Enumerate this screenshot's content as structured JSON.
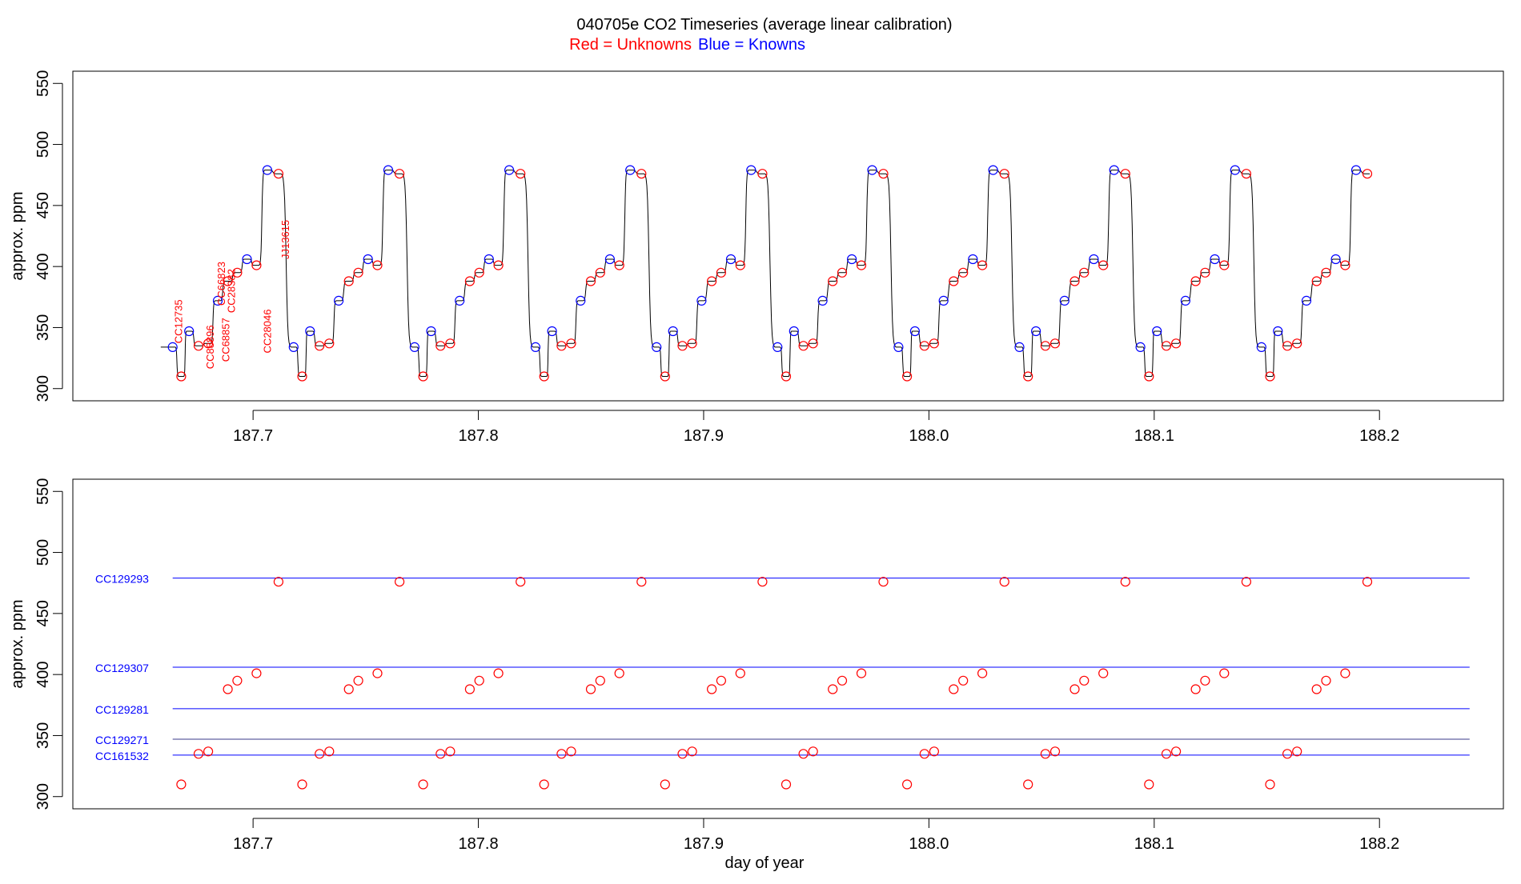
{
  "header": {
    "title": "040705e   CO2 Timeseries (average linear calibration)",
    "legend_red": "Red = Unknowns",
    "legend_blue": "Blue = Knowns"
  },
  "colors": {
    "unknown": "#ff0000",
    "known": "#0000ff",
    "trace": "#000000"
  },
  "chart_data": [
    {
      "type": "line",
      "ylabel": "approx. ppm",
      "xlim": [
        187.62,
        188.255
      ],
      "ylim": [
        290,
        560
      ],
      "xticks": [
        "187.7",
        "187.8",
        "187.9",
        "188.0",
        "188.1",
        "188.2"
      ],
      "yticks": [
        "300",
        "350",
        "400",
        "450",
        "500",
        "550"
      ],
      "grid": false,
      "cycle_start": 187.6643,
      "cycle_period": 0.0537,
      "cycle_count": 10,
      "trace_start": 187.659,
      "trace_end": 188.236,
      "cycle_points": [
        {
          "t": 0.0,
          "ppm": 334,
          "kind": "known"
        },
        {
          "t": 0.0038,
          "ppm": 310,
          "kind": "unknown"
        },
        {
          "t": 0.0073,
          "ppm": 347,
          "kind": "known"
        },
        {
          "t": 0.0115,
          "ppm": 335,
          "kind": "unknown"
        },
        {
          "t": 0.0158,
          "ppm": 337,
          "kind": "unknown"
        },
        {
          "t": 0.02,
          "ppm": 372,
          "kind": "known"
        },
        {
          "t": 0.0245,
          "ppm": 388,
          "kind": "unknown"
        },
        {
          "t": 0.0287,
          "ppm": 395,
          "kind": "unknown"
        },
        {
          "t": 0.033,
          "ppm": 406,
          "kind": "known"
        },
        {
          "t": 0.0372,
          "ppm": 401,
          "kind": "unknown"
        },
        {
          "t": 0.042,
          "ppm": 479,
          "kind": "known"
        },
        {
          "t": 0.047,
          "ppm": 476,
          "kind": "unknown"
        }
      ],
      "annotations": [
        {
          "label": "CC12735",
          "x": 187.6685,
          "y": 337
        },
        {
          "label": "CC88896",
          "x": 187.6825,
          "y": 316
        },
        {
          "label": "CC66823",
          "x": 187.6875,
          "y": 368
        },
        {
          "label": "CC68857",
          "x": 187.6895,
          "y": 322
        },
        {
          "label": "CC28382",
          "x": 187.692,
          "y": 362
        },
        {
          "label": "CC28046",
          "x": 187.708,
          "y": 329
        },
        {
          "label": "JJ13615",
          "x": 187.716,
          "y": 406
        }
      ]
    },
    {
      "type": "scatter",
      "xlabel": "day of year",
      "ylabel": "approx. ppm",
      "xlim": [
        187.62,
        188.255
      ],
      "ylim": [
        290,
        560
      ],
      "xticks": [
        "187.7",
        "187.8",
        "187.9",
        "188.0",
        "188.1",
        "188.2"
      ],
      "yticks": [
        "300",
        "350",
        "400",
        "450",
        "500",
        "550"
      ],
      "grid": false,
      "references": [
        {
          "name": "CC129293",
          "value": 479,
          "x0": 187.6643,
          "x1": 188.24
        },
        {
          "name": "CC129307",
          "value": 406,
          "x0": 187.6643,
          "x1": 188.24
        },
        {
          "name": "CC129281",
          "value": 372,
          "x0": 187.6643,
          "x1": 188.24
        },
        {
          "name": "CC129271",
          "value": 347,
          "x0": 187.6643,
          "x1": 188.24
        },
        {
          "name": "CC161532",
          "value": 334,
          "x0": 187.6643,
          "x1": 188.24
        }
      ]
    }
  ]
}
